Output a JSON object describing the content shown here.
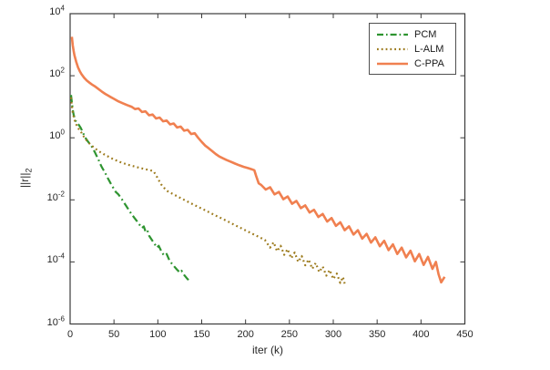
{
  "figure": {
    "bg": "#ffffff",
    "axis_color": "#3b3b3b",
    "text_color": "#262626",
    "legend_border_color": "#4f4f4f"
  },
  "chart_data": {
    "type": "line",
    "title": "",
    "xlabel": "iter (k)",
    "ylabel": "||r||_2",
    "ylabel_base": "||r||",
    "ylabel_sub": "2",
    "grid": false,
    "x_axis": {
      "min": 0,
      "max": 450,
      "ticks": [
        0,
        50,
        100,
        150,
        200,
        250,
        300,
        350,
        400,
        450
      ]
    },
    "y_axis": {
      "scale": "log10",
      "min_exp": -6,
      "max_exp": 4,
      "tick_exps": [
        4,
        2,
        0,
        -2,
        -4,
        -6
      ]
    },
    "legend": {
      "position": "upper right",
      "entries": [
        "PCM",
        "L-ALM",
        "C-PPA"
      ]
    },
    "series": [
      {
        "name": "PCM",
        "color": "#2e9430",
        "style": "dashdot",
        "width": 2.2,
        "points": [
          [
            1,
            24
          ],
          [
            2,
            14
          ],
          [
            3,
            8
          ],
          [
            4,
            5.5
          ],
          [
            6,
            3.6
          ],
          [
            8,
            3.0
          ],
          [
            10,
            2.6
          ],
          [
            12,
            2.1
          ],
          [
            14,
            1.6
          ],
          [
            16,
            1.2
          ],
          [
            18,
            0.95
          ],
          [
            20,
            0.78
          ],
          [
            22,
            0.66
          ],
          [
            24,
            0.57
          ],
          [
            26,
            0.44
          ],
          [
            28,
            0.35
          ],
          [
            30,
            0.27
          ],
          [
            32,
            0.21
          ],
          [
            34,
            0.15
          ],
          [
            36,
            0.115
          ],
          [
            38,
            0.092
          ],
          [
            40,
            0.074
          ],
          [
            43,
            0.05
          ],
          [
            46,
            0.035
          ],
          [
            49,
            0.025
          ],
          [
            52,
            0.018
          ],
          [
            55,
            0.015
          ],
          [
            58,
            0.0115
          ],
          [
            61,
            0.0085
          ],
          [
            64,
            0.0063
          ],
          [
            67,
            0.0047
          ],
          [
            70,
            0.0035
          ],
          [
            73,
            0.0027
          ],
          [
            76,
            0.0021
          ],
          [
            79,
            0.0016
          ],
          [
            82,
            0.00125
          ],
          [
            84,
            0.0014
          ],
          [
            86,
            0.00095
          ],
          [
            88,
            0.00105
          ],
          [
            90,
            0.0007
          ],
          [
            93,
            0.00052
          ],
          [
            96,
            0.00039
          ],
          [
            99,
            0.00029
          ],
          [
            101,
            0.00033
          ],
          [
            104,
            0.00022
          ],
          [
            107,
            0.00016
          ],
          [
            110,
            0.00018
          ],
          [
            113,
            0.000115
          ],
          [
            116,
            8.8e-05
          ],
          [
            119,
            7e-05
          ],
          [
            122,
            5.6e-05
          ],
          [
            125,
            4.6e-05
          ],
          [
            127,
            5.2e-05
          ],
          [
            130,
            3.8e-05
          ],
          [
            133,
            3e-05
          ],
          [
            135,
            2.6e-05
          ]
        ]
      },
      {
        "name": "L-ALM",
        "color": "#9d7b1e",
        "style": "dotted",
        "width": 2.2,
        "points": [
          [
            1,
            20
          ],
          [
            2,
            11
          ],
          [
            3,
            6.5
          ],
          [
            5,
            3.8
          ],
          [
            7,
            2.7
          ],
          [
            9,
            2.1
          ],
          [
            10,
            1.9
          ],
          [
            12,
            1.6
          ],
          [
            14,
            1.3
          ],
          [
            16,
            1.05
          ],
          [
            18,
            0.88
          ],
          [
            21,
            0.7
          ],
          [
            24,
            0.58
          ],
          [
            27,
            0.49
          ],
          [
            30,
            0.42
          ],
          [
            34,
            0.35
          ],
          [
            38,
            0.3
          ],
          [
            42,
            0.26
          ],
          [
            47,
            0.22
          ],
          [
            52,
            0.19
          ],
          [
            57,
            0.165
          ],
          [
            62,
            0.148
          ],
          [
            68,
            0.131
          ],
          [
            74,
            0.118
          ],
          [
            80,
            0.106
          ],
          [
            86,
            0.097
          ],
          [
            91,
            0.09
          ],
          [
            95,
            0.085
          ],
          [
            98,
            0.062
          ],
          [
            101,
            0.043
          ],
          [
            104,
            0.031
          ],
          [
            108,
            0.023
          ],
          [
            112,
            0.018
          ],
          [
            117,
            0.0155
          ],
          [
            124,
            0.0122
          ],
          [
            131,
            0.0097
          ],
          [
            138,
            0.0077
          ],
          [
            145,
            0.0061
          ],
          [
            152,
            0.0049
          ],
          [
            159,
            0.0039
          ],
          [
            166,
            0.0031
          ],
          [
            173,
            0.0025
          ],
          [
            180,
            0.002
          ],
          [
            187,
            0.00158
          ],
          [
            194,
            0.00126
          ],
          [
            201,
            0.001
          ],
          [
            208,
            0.0008
          ],
          [
            215,
            0.00064
          ],
          [
            222,
            0.00051
          ],
          [
            228,
            0.00029
          ],
          [
            232,
            0.00043
          ],
          [
            236,
            0.00022
          ],
          [
            240,
            0.00033
          ],
          [
            244,
            0.00017
          ],
          [
            248,
            0.00026
          ],
          [
            252,
            0.00013
          ],
          [
            256,
            0.0002
          ],
          [
            260,
            0.0001
          ],
          [
            264,
            0.000155
          ],
          [
            268,
            7.8e-05
          ],
          [
            272,
            0.00012
          ],
          [
            276,
            6e-05
          ],
          [
            280,
            9.2e-05
          ],
          [
            284,
            4.7e-05
          ],
          [
            288,
            7.1e-05
          ],
          [
            292,
            3.6e-05
          ],
          [
            296,
            5.5e-05
          ],
          [
            300,
            2.8e-05
          ],
          [
            304,
            4.2e-05
          ],
          [
            308,
            2.1e-05
          ],
          [
            311,
            3.3e-05
          ],
          [
            313,
            2e-05
          ]
        ]
      },
      {
        "name": "C-PPA",
        "color": "#f08050",
        "style": "solid",
        "width": 2.6,
        "points": [
          [
            2,
            1800
          ],
          [
            3,
            950
          ],
          [
            4,
            620
          ],
          [
            5,
            450
          ],
          [
            7,
            280
          ],
          [
            9,
            185
          ],
          [
            11,
            140
          ],
          [
            13,
            112
          ],
          [
            16,
            86
          ],
          [
            19,
            70
          ],
          [
            22,
            60
          ],
          [
            25,
            52
          ],
          [
            28,
            46
          ],
          [
            32,
            38
          ],
          [
            36,
            31
          ],
          [
            40,
            26
          ],
          [
            45,
            21.5
          ],
          [
            50,
            18
          ],
          [
            55,
            15
          ],
          [
            60,
            13
          ],
          [
            65,
            11.3
          ],
          [
            70,
            10
          ],
          [
            74,
            8.4
          ],
          [
            78,
            8.8
          ],
          [
            82,
            6.8
          ],
          [
            86,
            7.1
          ],
          [
            90,
            5.3
          ],
          [
            94,
            5.6
          ],
          [
            98,
            4.2
          ],
          [
            102,
            4.5
          ],
          [
            106,
            3.4
          ],
          [
            110,
            3.6
          ],
          [
            114,
            2.7
          ],
          [
            118,
            2.9
          ],
          [
            122,
            2.15
          ],
          [
            126,
            2.3
          ],
          [
            130,
            1.7
          ],
          [
            134,
            1.8
          ],
          [
            138,
            1.32
          ],
          [
            142,
            1.4
          ],
          [
            146,
            1.0
          ],
          [
            150,
            0.74
          ],
          [
            154,
            0.56
          ],
          [
            158,
            0.46
          ],
          [
            162,
            0.37
          ],
          [
            166,
            0.3
          ],
          [
            170,
            0.25
          ],
          [
            174,
            0.22
          ],
          [
            178,
            0.195
          ],
          [
            183,
            0.17
          ],
          [
            188,
            0.148
          ],
          [
            193,
            0.13
          ],
          [
            198,
            0.116
          ],
          [
            203,
            0.105
          ],
          [
            207,
            0.097
          ],
          [
            210,
            0.09
          ],
          [
            212,
            0.06
          ],
          [
            215,
            0.034
          ],
          [
            218,
            0.03
          ],
          [
            223,
            0.0215
          ],
          [
            228,
            0.0255
          ],
          [
            233,
            0.015
          ],
          [
            238,
            0.018
          ],
          [
            243,
            0.0105
          ],
          [
            248,
            0.0128
          ],
          [
            253,
            0.0075
          ],
          [
            258,
            0.0092
          ],
          [
            263,
            0.0054
          ],
          [
            268,
            0.0066
          ],
          [
            273,
            0.0039
          ],
          [
            278,
            0.0048
          ],
          [
            283,
            0.0028
          ],
          [
            288,
            0.0035
          ],
          [
            293,
            0.002
          ],
          [
            298,
            0.0026
          ],
          [
            303,
            0.00145
          ],
          [
            308,
            0.0019
          ],
          [
            313,
            0.00105
          ],
          [
            318,
            0.0014
          ],
          [
            323,
            0.00076
          ],
          [
            328,
            0.00105
          ],
          [
            333,
            0.00056
          ],
          [
            338,
            0.0008
          ],
          [
            343,
            0.00042
          ],
          [
            348,
            0.00062
          ],
          [
            353,
            0.00032
          ],
          [
            358,
            0.00048
          ],
          [
            363,
            0.00024
          ],
          [
            368,
            0.00037
          ],
          [
            373,
            0.00018
          ],
          [
            378,
            0.00029
          ],
          [
            383,
            0.00014
          ],
          [
            388,
            0.00023
          ],
          [
            393,
            0.000105
          ],
          [
            398,
            0.00018
          ],
          [
            403,
            8e-05
          ],
          [
            408,
            0.000145
          ],
          [
            413,
            6e-05
          ],
          [
            417,
            0.0001
          ],
          [
            420,
            4e-05
          ],
          [
            423,
            2.2e-05
          ],
          [
            426,
            3e-05
          ],
          [
            427,
            3.3e-05
          ]
        ]
      }
    ]
  }
}
